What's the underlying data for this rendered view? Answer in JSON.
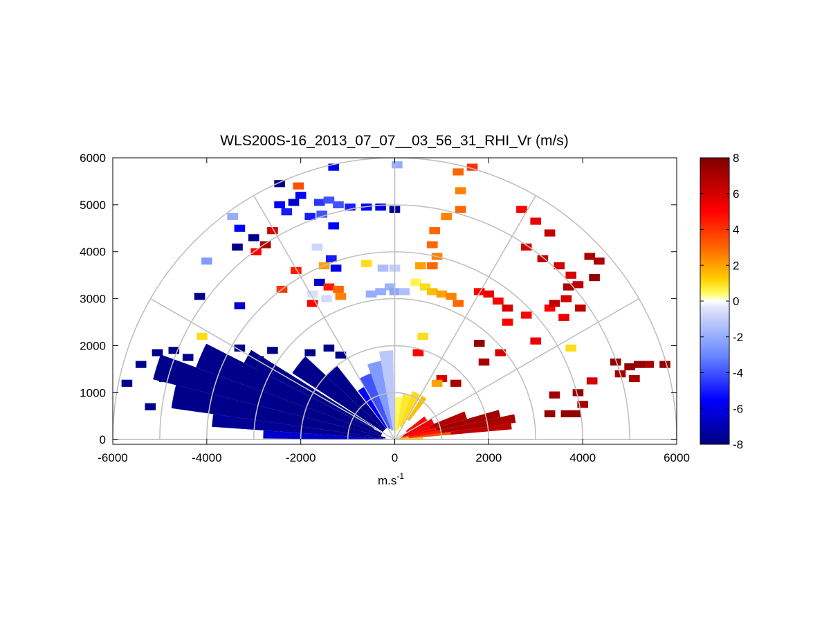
{
  "chart_data": {
    "type": "heatmap",
    "subtype": "polar-rhi-scan",
    "title": "WLS200S-16_2013_07_07__03_56_31_RHI_Vr (m/s)",
    "xlabel_base": "m.s",
    "xlabel_exp": "-1",
    "ylabel": "",
    "xlim": [
      -6000,
      6000
    ],
    "ylim": [
      -100,
      6000
    ],
    "xticks": [
      -6000,
      -4000,
      -2000,
      0,
      2000,
      4000,
      6000
    ],
    "xtick_labels": [
      "-6000",
      "-4000",
      "-2000",
      "0",
      "2000",
      "4000",
      "6000"
    ],
    "yticks": [
      0,
      1000,
      2000,
      3000,
      4000,
      5000,
      6000
    ],
    "ytick_labels": [
      "0",
      "1000",
      "2000",
      "3000",
      "4000",
      "5000",
      "6000"
    ],
    "range_rings_m": [
      1000,
      2000,
      3000,
      4000,
      5000,
      6000
    ],
    "spoke_angles_deg": [
      0,
      30,
      60,
      90,
      120,
      150,
      180
    ],
    "colorbar": {
      "min": -8,
      "max": 8,
      "ticks": [
        -8,
        -6,
        -4,
        -2,
        0,
        2,
        4,
        6,
        8
      ],
      "tick_labels": [
        "-8",
        "-6",
        "-4",
        "-2",
        "0",
        "2",
        "4",
        "6",
        "8"
      ],
      "colormap": "blue-white-yellow-red",
      "stops": [
        {
          "v": -8,
          "color": "#000080"
        },
        {
          "v": -5.5,
          "color": "#0000ff"
        },
        {
          "v": -3,
          "color": "#6a8aff"
        },
        {
          "v": -0.4,
          "color": "#dfe3fb"
        },
        {
          "v": 0,
          "color": "#ffffff"
        },
        {
          "v": 0.4,
          "color": "#ffff66"
        },
        {
          "v": 1.2,
          "color": "#ffd000"
        },
        {
          "v": 3,
          "color": "#ff6600"
        },
        {
          "v": 5,
          "color": "#ff0000"
        },
        {
          "v": 8,
          "color": "#800000"
        }
      ]
    },
    "sectors": [
      {
        "a1": 5,
        "a2": 8,
        "r1": 0,
        "r2": 300,
        "v": 1.5
      },
      {
        "a1": 5,
        "a2": 8,
        "r1": 300,
        "r2": 1200,
        "v": 3.5
      },
      {
        "a1": 5,
        "a2": 8,
        "r1": 1200,
        "r2": 2500,
        "v": 6.5
      },
      {
        "a1": 8,
        "a2": 12,
        "r1": 0,
        "r2": 300,
        "v": 2
      },
      {
        "a1": 8,
        "a2": 12,
        "r1": 300,
        "r2": 1000,
        "v": 4.5
      },
      {
        "a1": 8,
        "a2": 12,
        "r1": 1000,
        "r2": 2600,
        "v": 7
      },
      {
        "a1": 12,
        "a2": 16,
        "r1": 0,
        "r2": 300,
        "v": 2.5
      },
      {
        "a1": 12,
        "a2": 16,
        "r1": 300,
        "r2": 900,
        "v": 5
      },
      {
        "a1": 12,
        "a2": 16,
        "r1": 900,
        "r2": 2300,
        "v": 7.2
      },
      {
        "a1": 16,
        "a2": 22,
        "r1": 150,
        "r2": 800,
        "v": 5.2
      },
      {
        "a1": 16,
        "a2": 22,
        "r1": 800,
        "r2": 1600,
        "v": 6.8
      },
      {
        "a1": 22,
        "a2": 30,
        "r1": 200,
        "r2": 900,
        "v": 5.5
      },
      {
        "a1": 30,
        "a2": 38,
        "r1": 300,
        "r2": 800,
        "v": 4.8
      },
      {
        "a1": 52,
        "a2": 58,
        "r1": 500,
        "r2": 1100,
        "v": 1.5
      },
      {
        "a1": 60,
        "a2": 70,
        "r1": 300,
        "r2": 1100,
        "v": 1
      },
      {
        "a1": 70,
        "a2": 80,
        "r1": 200,
        "r2": 1000,
        "v": 0.8
      },
      {
        "a1": 80,
        "a2": 89,
        "r1": 150,
        "r2": 900,
        "v": 0.5
      },
      {
        "a1": 91,
        "a2": 100,
        "r1": 200,
        "r2": 1900,
        "v": -1.2
      },
      {
        "a1": 100,
        "a2": 110,
        "r1": 200,
        "r2": 1700,
        "v": -2.5
      },
      {
        "a1": 110,
        "a2": 120,
        "r1": 250,
        "r2": 1500,
        "v": -4
      },
      {
        "a1": 120,
        "a2": 127,
        "r1": 300,
        "r2": 1300,
        "v": -5.5
      },
      {
        "a1": 128,
        "a2": 137,
        "r1": 300,
        "r2": 2000,
        "v": -7.8
      },
      {
        "a1": 137,
        "a2": 147,
        "r1": 300,
        "r2": 2600,
        "v": -7.8
      },
      {
        "a1": 148,
        "a2": 153,
        "r1": 500,
        "r2": 3600,
        "v": -7.8
      },
      {
        "a1": 153,
        "a2": 160,
        "r1": 300,
        "r2": 4500,
        "v": -7.8
      },
      {
        "a1": 160,
        "a2": 166,
        "r1": 300,
        "r2": 5300,
        "v": -7.8
      },
      {
        "a1": 166,
        "a2": 172,
        "r1": 200,
        "r2": 4800,
        "v": -7.8
      },
      {
        "a1": 172,
        "a2": 176,
        "r1": 200,
        "r2": 3900,
        "v": -7.6
      },
      {
        "a1": 176,
        "a2": 179.5,
        "r1": 100,
        "r2": 2800,
        "v": -6.5
      },
      {
        "a1": 174,
        "a2": 179,
        "r1": 0,
        "r2": 250,
        "v": -1.5
      },
      {
        "a1": 1,
        "a2": 5,
        "r1": 0,
        "r2": 600,
        "v": 1.2
      }
    ],
    "cells": [
      {
        "x": -5400,
        "y": 1600,
        "v": -7.8
      },
      {
        "x": -5050,
        "y": 1850,
        "v": -7.8
      },
      {
        "x": -4700,
        "y": 1900,
        "v": -7.8
      },
      {
        "x": -4400,
        "y": 1750,
        "v": -7.8
      },
      {
        "x": -3800,
        "y": 1800,
        "v": -7.8
      },
      {
        "x": -3300,
        "y": 1950,
        "v": -7.8
      },
      {
        "x": -2900,
        "y": 1700,
        "v": -7.8
      },
      {
        "x": -2600,
        "y": 1900,
        "v": -7.8
      },
      {
        "x": -1800,
        "y": 1850,
        "v": -7.8
      },
      {
        "x": -1400,
        "y": 1950,
        "v": -7.8
      },
      {
        "x": -1150,
        "y": 1800,
        "v": -7.8
      },
      {
        "x": -5700,
        "y": 1200,
        "v": -7.8
      },
      {
        "x": -4900,
        "y": 1300,
        "v": -7.8
      },
      {
        "x": -5200,
        "y": 700,
        "v": -7.8
      },
      {
        "x": -3950,
        "y": 850,
        "v": -7.8
      },
      {
        "x": -2800,
        "y": 1400,
        "v": -7.8
      },
      {
        "x": -4100,
        "y": 2200,
        "v": 1
      },
      {
        "x": -4150,
        "y": 3050,
        "v": -7.8
      },
      {
        "x": -3300,
        "y": 2850,
        "v": -6.5
      },
      {
        "x": -4000,
        "y": 3800,
        "v": -2.5
      },
      {
        "x": -3450,
        "y": 4750,
        "v": -2
      },
      {
        "x": -3300,
        "y": 4500,
        "v": -5.5
      },
      {
        "x": -3350,
        "y": 4100,
        "v": -7.8
      },
      {
        "x": -3000,
        "y": 4300,
        "v": -7.8
      },
      {
        "x": -2950,
        "y": 4000,
        "v": 5
      },
      {
        "x": -2750,
        "y": 4150,
        "v": 7
      },
      {
        "x": -2600,
        "y": 4450,
        "v": 6
      },
      {
        "x": -2450,
        "y": 5450,
        "v": -7.8
      },
      {
        "x": -2150,
        "y": 5050,
        "v": -6.5
      },
      {
        "x": -2450,
        "y": 5000,
        "v": -5.5
      },
      {
        "x": -2300,
        "y": 4850,
        "v": -5
      },
      {
        "x": -2000,
        "y": 5200,
        "v": -5.5
      },
      {
        "x": -2050,
        "y": 5400,
        "v": 3.5
      },
      {
        "x": -1550,
        "y": 4800,
        "v": -4
      },
      {
        "x": -1650,
        "y": 4100,
        "v": -0.8
      },
      {
        "x": -2100,
        "y": 3600,
        "v": 4.5
      },
      {
        "x": -2400,
        "y": 3200,
        "v": 4
      },
      {
        "x": -1750,
        "y": 3100,
        "v": -0.5
      },
      {
        "x": -1600,
        "y": 3350,
        "v": -6.5
      },
      {
        "x": -1400,
        "y": 3250,
        "v": 4.5
      },
      {
        "x": -1200,
        "y": 3200,
        "v": 3
      },
      {
        "x": -1150,
        "y": 3050,
        "v": 2.5
      },
      {
        "x": -1450,
        "y": 3000,
        "v": -0.7
      },
      {
        "x": -1750,
        "y": 2900,
        "v": 5
      },
      {
        "x": -1250,
        "y": 3650,
        "v": -6
      },
      {
        "x": -1500,
        "y": 3700,
        "v": 2
      },
      {
        "x": -1350,
        "y": 3850,
        "v": -5
      },
      {
        "x": -600,
        "y": 3750,
        "v": 1
      },
      {
        "x": -1300,
        "y": 4550,
        "v": -5.5
      },
      {
        "x": -1800,
        "y": 4750,
        "v": -5
      },
      {
        "x": -1600,
        "y": 5050,
        "v": -4.5
      },
      {
        "x": -1400,
        "y": 5100,
        "v": -4
      },
      {
        "x": -1200,
        "y": 5000,
        "v": -4
      },
      {
        "x": -1300,
        "y": 5800,
        "v": -6
      },
      {
        "x": -950,
        "y": 4950,
        "v": -5
      },
      {
        "x": -600,
        "y": 4950,
        "v": -5.5
      },
      {
        "x": -300,
        "y": 4950,
        "v": -6
      },
      {
        "x": 0,
        "y": 4900,
        "v": -7.5
      },
      {
        "x": 50,
        "y": 5850,
        "v": -2
      },
      {
        "x": 0,
        "y": 3650,
        "v": -1
      },
      {
        "x": -250,
        "y": 3650,
        "v": -1.5
      },
      {
        "x": -100,
        "y": 3250,
        "v": -1.8
      },
      {
        "x": -300,
        "y": 3150,
        "v": -2
      },
      {
        "x": -500,
        "y": 3100,
        "v": -2
      },
      {
        "x": 0,
        "y": 3150,
        "v": -2.2
      },
      {
        "x": 200,
        "y": 3150,
        "v": -1.5
      },
      {
        "x": 450,
        "y": 3350,
        "v": 0.6
      },
      {
        "x": 650,
        "y": 3250,
        "v": 1
      },
      {
        "x": 800,
        "y": 3150,
        "v": 1.5
      },
      {
        "x": 1000,
        "y": 3100,
        "v": 2
      },
      {
        "x": 1200,
        "y": 3050,
        "v": 2.5
      },
      {
        "x": 1350,
        "y": 2900,
        "v": 3
      },
      {
        "x": 550,
        "y": 3700,
        "v": 2
      },
      {
        "x": 800,
        "y": 3700,
        "v": 3
      },
      {
        "x": 900,
        "y": 3900,
        "v": 2.5
      },
      {
        "x": 800,
        "y": 4150,
        "v": 3
      },
      {
        "x": 850,
        "y": 4450,
        "v": 3
      },
      {
        "x": 1100,
        "y": 4750,
        "v": 2.5
      },
      {
        "x": 1400,
        "y": 5300,
        "v": 2.5
      },
      {
        "x": 1350,
        "y": 5700,
        "v": 3
      },
      {
        "x": 1650,
        "y": 5800,
        "v": 4
      },
      {
        "x": 1400,
        "y": 4900,
        "v": 3
      },
      {
        "x": 1800,
        "y": 3150,
        "v": 5
      },
      {
        "x": 2000,
        "y": 3100,
        "v": 5.5
      },
      {
        "x": 2200,
        "y": 2950,
        "v": 5
      },
      {
        "x": 2400,
        "y": 2800,
        "v": 6
      },
      {
        "x": 2400,
        "y": 2500,
        "v": 5
      },
      {
        "x": 2800,
        "y": 2650,
        "v": 5
      },
      {
        "x": 3000,
        "y": 2100,
        "v": 5.5
      },
      {
        "x": 1800,
        "y": 2050,
        "v": 7.5
      },
      {
        "x": 2250,
        "y": 1850,
        "v": 6
      },
      {
        "x": 1900,
        "y": 1650,
        "v": 7
      },
      {
        "x": 600,
        "y": 2200,
        "v": 1
      },
      {
        "x": 500,
        "y": 1850,
        "v": 5
      },
      {
        "x": 1000,
        "y": 1300,
        "v": 6
      },
      {
        "x": 1300,
        "y": 1200,
        "v": 7
      },
      {
        "x": 900,
        "y": 1200,
        "v": 2
      },
      {
        "x": 2700,
        "y": 4900,
        "v": 5
      },
      {
        "x": 3000,
        "y": 4650,
        "v": 5.5
      },
      {
        "x": 3300,
        "y": 4400,
        "v": 6.5
      },
      {
        "x": 2800,
        "y": 4100,
        "v": 6
      },
      {
        "x": 3150,
        "y": 3850,
        "v": 6.5
      },
      {
        "x": 3500,
        "y": 3700,
        "v": 6
      },
      {
        "x": 3750,
        "y": 3500,
        "v": 6
      },
      {
        "x": 4150,
        "y": 3900,
        "v": 7
      },
      {
        "x": 4350,
        "y": 3800,
        "v": 7
      },
      {
        "x": 3700,
        "y": 3250,
        "v": 7
      },
      {
        "x": 3900,
        "y": 3300,
        "v": 6.5
      },
      {
        "x": 3300,
        "y": 2800,
        "v": 5
      },
      {
        "x": 3650,
        "y": 3000,
        "v": 6
      },
      {
        "x": 3400,
        "y": 2900,
        "v": 6.5
      },
      {
        "x": 3600,
        "y": 2600,
        "v": 5.5
      },
      {
        "x": 3950,
        "y": 2800,
        "v": 6.5
      },
      {
        "x": 4250,
        "y": 3450,
        "v": 7.5
      },
      {
        "x": 4700,
        "y": 1650,
        "v": 7.5
      },
      {
        "x": 5000,
        "y": 1550,
        "v": 7.5
      },
      {
        "x": 5400,
        "y": 1600,
        "v": 7
      },
      {
        "x": 5750,
        "y": 1600,
        "v": 7.5
      },
      {
        "x": 5100,
        "y": 1300,
        "v": 7
      },
      {
        "x": 4800,
        "y": 1400,
        "v": 7
      },
      {
        "x": 5200,
        "y": 1600,
        "v": 7.5
      },
      {
        "x": 4200,
        "y": 1250,
        "v": 6
      },
      {
        "x": 3750,
        "y": 1950,
        "v": 1
      },
      {
        "x": 3900,
        "y": 1000,
        "v": 7.5
      },
      {
        "x": 3400,
        "y": 950,
        "v": 7.2
      },
      {
        "x": 3650,
        "y": 550,
        "v": 7.5
      },
      {
        "x": 3300,
        "y": 550,
        "v": 7.5
      },
      {
        "x": 3850,
        "y": 550,
        "v": 7.5
      },
      {
        "x": 4000,
        "y": 750,
        "v": 7
      }
    ]
  }
}
